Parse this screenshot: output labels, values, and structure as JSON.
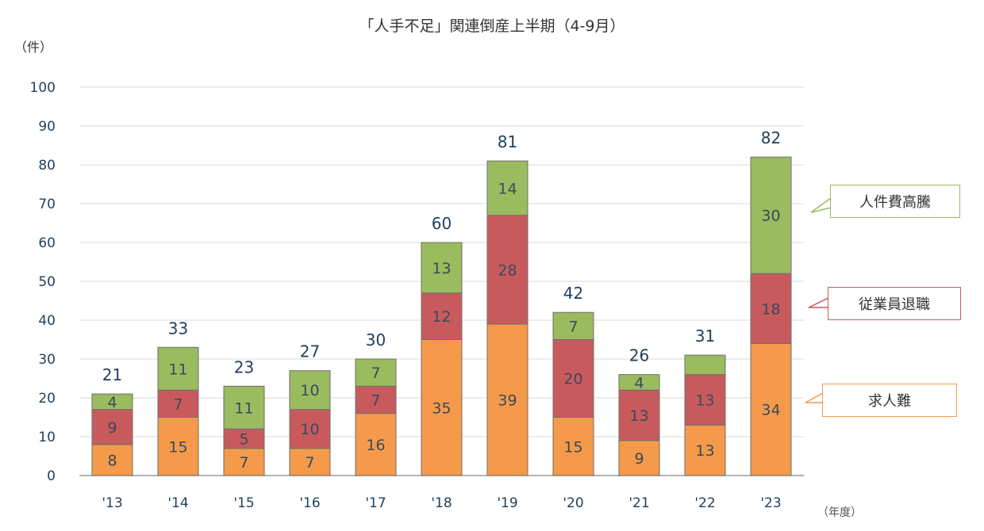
{
  "chart_title": "「人手不足」関連倒産上半期（4-9月）",
  "y_unit": "（件）",
  "x_unit": "（年度）",
  "colors": {
    "recruit": "#f59a4a",
    "retire": "#c85a5e",
    "labor_cost": "#9bbb5f",
    "grid": "#d9d9d9",
    "text": "#1f3f5f"
  },
  "chart_data": {
    "type": "bar",
    "stacked": true,
    "title": "「人手不足」関連倒産上半期（4-9月）",
    "ylabel": "（件）",
    "xlabel": "（年度）",
    "ylim": [
      0,
      100
    ],
    "yticks": [
      0,
      10,
      20,
      30,
      40,
      50,
      60,
      70,
      80,
      90,
      100
    ],
    "grid": true,
    "categories": [
      "'13",
      "'14",
      "'15",
      "'16",
      "'17",
      "'18",
      "'19",
      "'20",
      "'21",
      "'22",
      "'23"
    ],
    "totals": [
      21,
      33,
      23,
      27,
      30,
      60,
      81,
      42,
      26,
      31,
      82
    ],
    "series": [
      {
        "key": "recruit",
        "name": "求人難",
        "color": "#f59a4a",
        "values": [
          8,
          15,
          7,
          7,
          16,
          35,
          39,
          15,
          9,
          13,
          34
        ]
      },
      {
        "key": "retire",
        "name": "従業員退職",
        "color": "#c85a5e",
        "values": [
          9,
          7,
          5,
          10,
          7,
          12,
          28,
          20,
          13,
          13,
          18
        ]
      },
      {
        "key": "labor_cost",
        "name": "人件費高騰",
        "color": "#9bbb5f",
        "values": [
          4,
          11,
          11,
          10,
          7,
          13,
          14,
          7,
          4,
          5,
          30
        ],
        "value_labels": [
          "4",
          "11",
          "11",
          "10",
          "7",
          "13",
          "14",
          "7",
          "4",
          "",
          "30"
        ]
      }
    ]
  },
  "legend": [
    {
      "label": "人件費高騰",
      "color": "#9bbb5f"
    },
    {
      "label": "従業員退職",
      "color": "#c85a5e"
    },
    {
      "label": "求人難",
      "color": "#f59a4a"
    }
  ]
}
